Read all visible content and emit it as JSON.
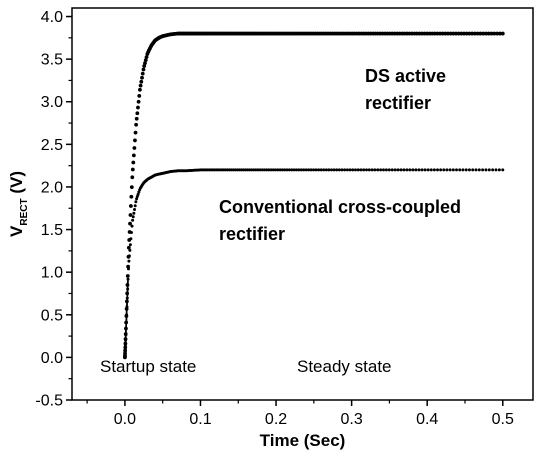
{
  "chart_data": {
    "type": "line",
    "title": "",
    "xlabel": "Time (Sec)",
    "ylabel_main": "V",
    "ylabel_sub": "RECT",
    "ylabel_unit": "(V)",
    "xlim": [
      -0.07,
      0.54
    ],
    "ylim": [
      -0.5,
      4.1
    ],
    "xticks": [
      0.0,
      0.1,
      0.2,
      0.3,
      0.4,
      0.5
    ],
    "xtick_labels": [
      "0.0",
      "0.1",
      "0.2",
      "0.3",
      "0.4",
      "0.5"
    ],
    "yticks": [
      -0.5,
      0.0,
      0.5,
      1.0,
      1.5,
      2.0,
      2.5,
      3.0,
      3.5,
      4.0
    ],
    "ytick_labels": [
      "-0.5",
      "0.0",
      "0.5",
      "1.0",
      "1.5",
      "2.0",
      "2.5",
      "3.0",
      "3.5",
      "4.0"
    ],
    "grid": false,
    "series": [
      {
        "color": "#000000",
        "label_lines": [
          "DS active",
          "rectifier"
        ],
        "x": [
          0.0,
          0.005,
          0.01,
          0.015,
          0.02,
          0.025,
          0.03,
          0.035,
          0.04,
          0.045,
          0.05,
          0.06,
          0.07,
          0.08,
          0.09,
          0.1,
          0.15,
          0.2,
          0.3,
          0.4,
          0.5
        ],
        "y": [
          0.0,
          1.25,
          2.15,
          2.75,
          3.15,
          3.4,
          3.57,
          3.66,
          3.72,
          3.75,
          3.77,
          3.79,
          3.8,
          3.8,
          3.8,
          3.8,
          3.8,
          3.8,
          3.8,
          3.8,
          3.8
        ]
      },
      {
        "color": "#000000",
        "label_lines": [
          "Conventional cross-coupled",
          "rectifier"
        ],
        "x": [
          0.0,
          0.005,
          0.01,
          0.015,
          0.02,
          0.025,
          0.03,
          0.04,
          0.05,
          0.06,
          0.07,
          0.08,
          0.1,
          0.15,
          0.2,
          0.3,
          0.4,
          0.5
        ],
        "y": [
          0.0,
          1.1,
          1.6,
          1.85,
          1.98,
          2.05,
          2.09,
          2.14,
          2.16,
          2.18,
          2.19,
          2.19,
          2.2,
          2.2,
          2.2,
          2.2,
          2.2,
          2.2
        ]
      }
    ],
    "annotations": {
      "startup": "Startup state",
      "steady": "Steady state"
    }
  }
}
